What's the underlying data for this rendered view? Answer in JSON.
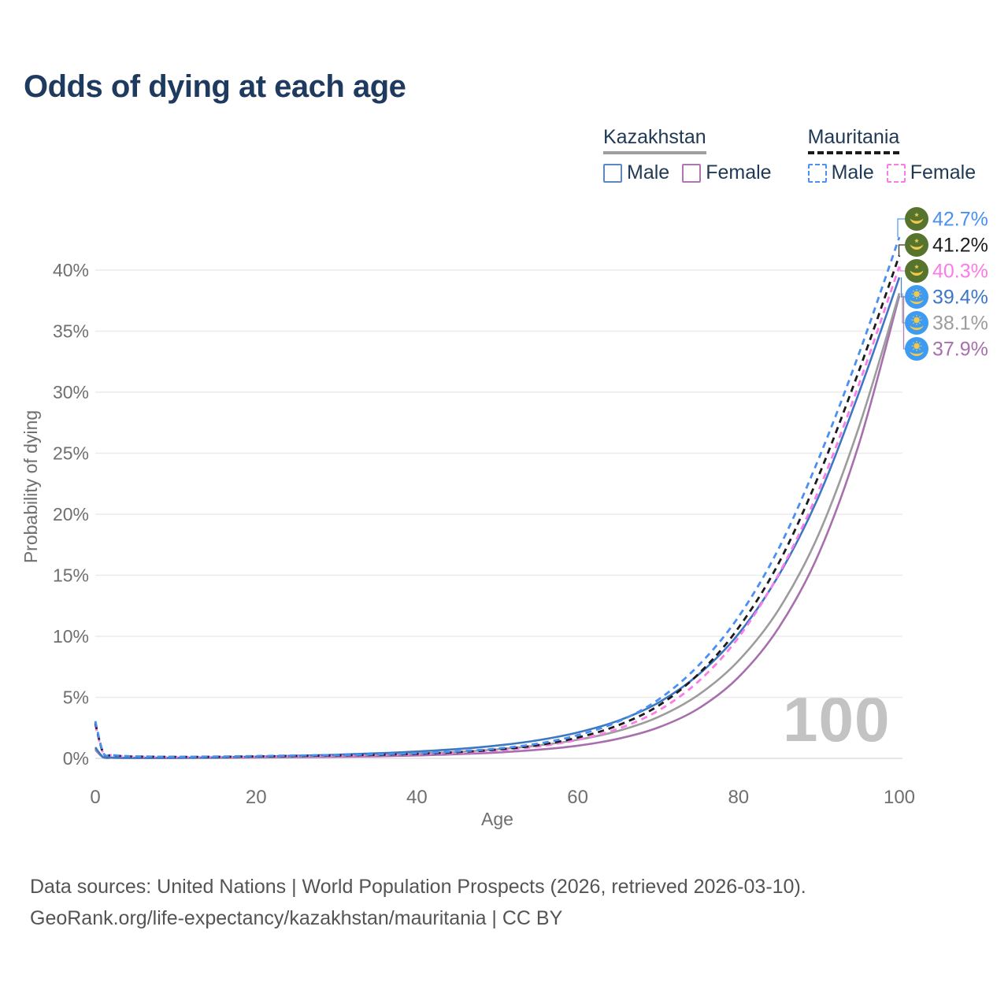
{
  "title": "Odds of dying at each age",
  "legend": {
    "groups": [
      {
        "name": "Kazakhstan",
        "underline_color": "#9e9e9e",
        "underline_dashed": false,
        "items": [
          {
            "label": "Male",
            "color": "#5b87c5",
            "dash": false
          },
          {
            "label": "Female",
            "color": "#b273b2",
            "dash": false
          }
        ]
      },
      {
        "name": "Mauritania",
        "underline_color": "#1b1b1b",
        "underline_dashed": true,
        "items": [
          {
            "label": "Male",
            "color": "#4a90f2",
            "dash": true
          },
          {
            "label": "Female",
            "color": "#fb7be8",
            "dash": true
          }
        ]
      }
    ]
  },
  "watermark": "100",
  "footer": {
    "line1": "Data sources: United Nations | World Population Prospects (2026, retrieved 2026-03-10).",
    "line2": "GeoRank.org/life-expectancy/kazakhstan/mauritania | CC BY"
  },
  "chart_data": {
    "type": "line",
    "title": "Odds of dying at each age",
    "xlabel": "Age",
    "ylabel": "Probability of dying",
    "xlim": [
      0,
      100
    ],
    "ylim": [
      0,
      44
    ],
    "grid": true,
    "legend_position": "top-right",
    "x_ticks": [
      0,
      20,
      40,
      60,
      80,
      100
    ],
    "y_ticks": [
      "0%",
      "5%",
      "10%",
      "15%",
      "20%",
      "25%",
      "30%",
      "35%",
      "40%"
    ],
    "y_tick_values": [
      0,
      5,
      10,
      15,
      20,
      25,
      30,
      35,
      40
    ],
    "x": [
      0,
      1,
      2,
      3,
      4,
      5,
      10,
      15,
      20,
      25,
      30,
      35,
      40,
      45,
      50,
      55,
      60,
      65,
      70,
      75,
      80,
      85,
      90,
      95,
      100
    ],
    "series": [
      {
        "id": "mauritania-male",
        "name": "Mauritania Male",
        "color": "#4a90f2",
        "dash": true,
        "flag": "mauritania",
        "end_label": "42.7%",
        "end_value": 42.7,
        "values": [
          3.05,
          0.45,
          0.28,
          0.22,
          0.18,
          0.16,
          0.13,
          0.15,
          0.19,
          0.23,
          0.27,
          0.33,
          0.42,
          0.57,
          0.8,
          1.2,
          1.9,
          3.0,
          4.8,
          7.6,
          11.6,
          17.2,
          24.6,
          33.2,
          42.7
        ]
      },
      {
        "id": "mauritania-overall",
        "name": "Mauritania Overall",
        "color": "#1c1c1c",
        "dash": true,
        "flag": "mauritania",
        "end_label": "41.2%",
        "end_value": 41.2,
        "values": [
          2.9,
          0.42,
          0.26,
          0.2,
          0.17,
          0.15,
          0.12,
          0.13,
          0.16,
          0.2,
          0.24,
          0.29,
          0.37,
          0.51,
          0.72,
          1.08,
          1.7,
          2.7,
          4.3,
          6.9,
          10.7,
          16.0,
          23.2,
          31.8,
          41.2
        ]
      },
      {
        "id": "mauritania-female",
        "name": "Mauritania Female",
        "color": "#fb7be8",
        "dash": true,
        "flag": "mauritania",
        "end_label": "40.3%",
        "end_value": 40.3,
        "values": [
          2.75,
          0.4,
          0.25,
          0.19,
          0.16,
          0.14,
          0.11,
          0.12,
          0.14,
          0.17,
          0.2,
          0.25,
          0.32,
          0.45,
          0.64,
          0.97,
          1.52,
          2.42,
          3.9,
          6.3,
          9.9,
          15.1,
          22.0,
          30.7,
          40.3
        ]
      },
      {
        "id": "kazakhstan-male",
        "name": "Kazakhstan Male",
        "color": "#3d77c2",
        "dash": false,
        "flag": "kazakhstan",
        "end_label": "39.4%",
        "end_value": 39.4,
        "values": [
          0.9,
          0.09,
          0.06,
          0.05,
          0.04,
          0.04,
          0.04,
          0.08,
          0.14,
          0.21,
          0.3,
          0.41,
          0.56,
          0.76,
          1.05,
          1.48,
          2.12,
          3.08,
          4.55,
          6.85,
          10.2,
          15.0,
          21.5,
          30.0,
          39.4
        ]
      },
      {
        "id": "kazakhstan-overall",
        "name": "Kazakhstan Overall",
        "color": "#9c9c9c",
        "dash": false,
        "flag": "kazakhstan",
        "end_label": "38.1%",
        "end_value": 38.1,
        "values": [
          0.8,
          0.08,
          0.05,
          0.04,
          0.04,
          0.03,
          0.03,
          0.06,
          0.1,
          0.15,
          0.21,
          0.29,
          0.39,
          0.53,
          0.74,
          1.05,
          1.52,
          2.24,
          3.38,
          5.2,
          8.0,
          12.2,
          18.4,
          27.2,
          38.1
        ]
      },
      {
        "id": "kazakhstan-female",
        "name": "Kazakhstan Female",
        "color": "#a86fae",
        "dash": false,
        "flag": "kazakhstan",
        "end_label": "37.9%",
        "end_value": 37.9,
        "values": [
          0.7,
          0.07,
          0.05,
          0.04,
          0.03,
          0.03,
          0.03,
          0.04,
          0.06,
          0.09,
          0.12,
          0.17,
          0.24,
          0.34,
          0.48,
          0.7,
          1.04,
          1.6,
          2.52,
          4.08,
          6.65,
          10.7,
          16.8,
          25.8,
          37.9
        ]
      }
    ],
    "flag_colors": {
      "mauritania_green": "#57742e",
      "kazakhstan_blue": "#3d9bf2",
      "gold": "#f2c94c"
    }
  }
}
